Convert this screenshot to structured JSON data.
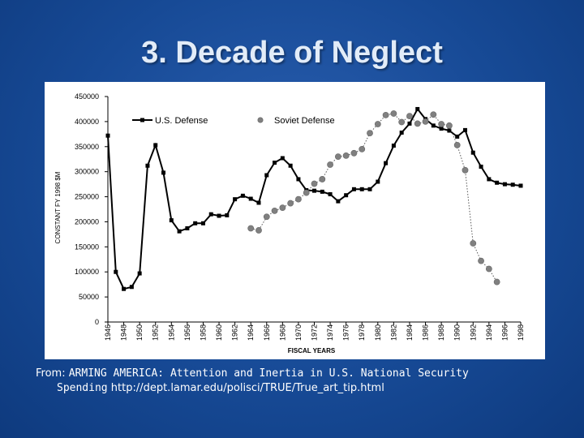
{
  "slide": {
    "title": "3. Decade of Neglect"
  },
  "caption": {
    "prefix": "From: ",
    "source_part1": "ARMING AMERICA: Attention and Inertia in U.S. National Security",
    "source_part2": "Spending",
    "url": " http://dept.lamar.edu/polisci/TRUE/True_art_tip.html"
  },
  "chart_data": {
    "type": "line",
    "title": "",
    "xlabel": "FISCAL YEARS",
    "ylabel": "CONSTANT FY 1998 $M",
    "xlim": [
      1946,
      1998
    ],
    "ylim": [
      0,
      450000
    ],
    "x_ticks": [
      1946,
      1948,
      1950,
      1952,
      1954,
      1956,
      1958,
      1960,
      1962,
      1964,
      1966,
      1968,
      1970,
      1972,
      1974,
      1976,
      1978,
      1980,
      1982,
      1984,
      1986,
      1988,
      1990,
      1992,
      1994,
      1996,
      1998
    ],
    "y_ticks": [
      0,
      50000,
      100000,
      150000,
      200000,
      250000,
      300000,
      350000,
      400000,
      450000
    ],
    "grid": false,
    "legend": "top",
    "series": [
      {
        "name": "U.S. Defense",
        "style": "solid-line-square-markers",
        "color": "#000000",
        "x": [
          1946,
          1947,
          1948,
          1949,
          1950,
          1951,
          1952,
          1953,
          1954,
          1955,
          1956,
          1957,
          1958,
          1959,
          1960,
          1961,
          1962,
          1963,
          1964,
          1965,
          1966,
          1967,
          1968,
          1969,
          1970,
          1971,
          1972,
          1973,
          1974,
          1975,
          1976,
          1977,
          1978,
          1979,
          1980,
          1981,
          1982,
          1983,
          1984,
          1985,
          1986,
          1987,
          1988,
          1989,
          1990,
          1991,
          1992,
          1993,
          1994,
          1995,
          1996,
          1997,
          1998
        ],
        "y": [
          372000,
          100000,
          66000,
          70000,
          97000,
          312000,
          353000,
          298000,
          203000,
          181000,
          187000,
          197000,
          197000,
          215000,
          212000,
          213000,
          245000,
          252000,
          246000,
          238000,
          293000,
          318000,
          327000,
          312000,
          285000,
          263000,
          262000,
          260000,
          255000,
          241000,
          253000,
          265000,
          265000,
          265000,
          280000,
          317000,
          352000,
          378000,
          396000,
          425000,
          405000,
          392000,
          386000,
          382000,
          370000,
          383000,
          338000,
          310000,
          285000,
          278000,
          275000,
          274000,
          272000
        ]
      },
      {
        "name": "Soviet Defense",
        "style": "dotted-line-circle-markers",
        "color": "#808080",
        "x": [
          1964,
          1965,
          1966,
          1967,
          1968,
          1969,
          1970,
          1971,
          1972,
          1973,
          1974,
          1975,
          1976,
          1977,
          1978,
          1979,
          1980,
          1981,
          1982,
          1983,
          1984,
          1985,
          1986,
          1987,
          1988,
          1989,
          1990,
          1991,
          1992,
          1993,
          1994,
          1995
        ],
        "y": [
          187000,
          183000,
          210000,
          222000,
          228000,
          237000,
          245000,
          258000,
          276000,
          285000,
          314000,
          330000,
          332000,
          337000,
          345000,
          377000,
          395000,
          413000,
          416000,
          399000,
          411000,
          396000,
          400000,
          414000,
          395000,
          392000,
          353000,
          303000,
          157000,
          122000,
          106000,
          80000
        ]
      }
    ]
  }
}
